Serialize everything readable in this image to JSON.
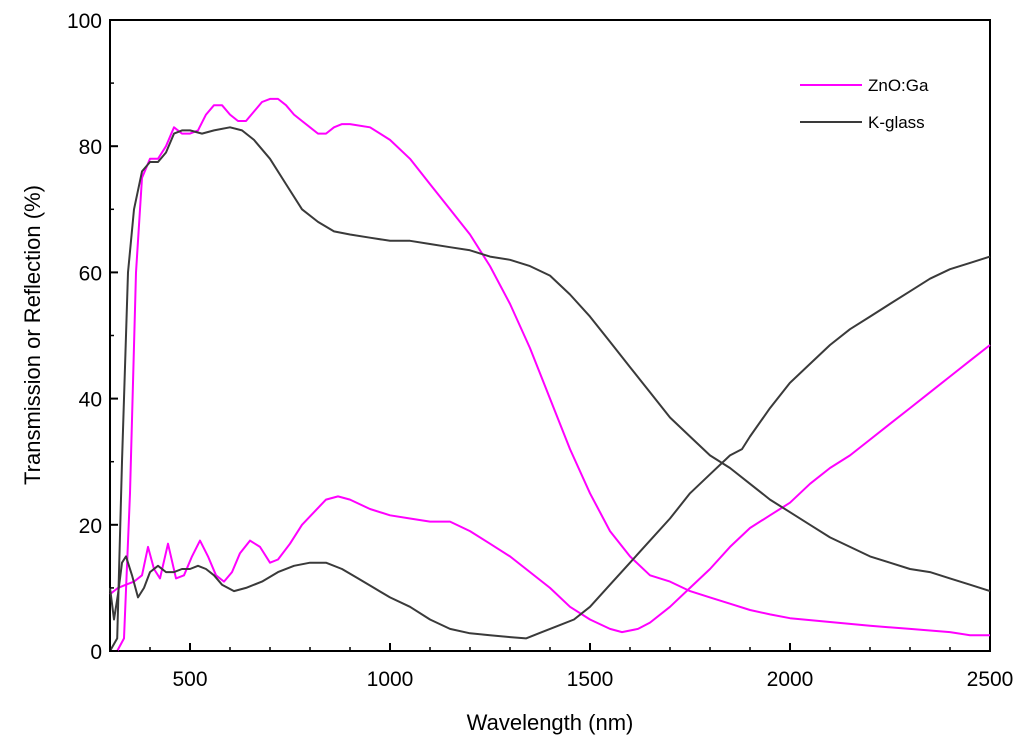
{
  "chart_data": {
    "type": "line",
    "title": "",
    "xlabel": "Wavelength (nm)",
    "ylabel": "Transmission or Reflection (%)",
    "xlim": [
      300,
      2500
    ],
    "ylim": [
      0,
      100
    ],
    "x_ticks": [
      500,
      1000,
      1500,
      2000,
      2500
    ],
    "y_ticks": [
      0,
      20,
      40,
      60,
      80,
      100
    ],
    "x_tick_labels": [
      "500",
      "1000",
      "1500",
      "2000",
      "2500"
    ],
    "y_tick_labels": [
      "0",
      "20",
      "40",
      "60",
      "80",
      "100"
    ],
    "grid": false,
    "legend": {
      "position": "top-right",
      "entries": [
        {
          "label": "ZnO:Ga",
          "color": "#ff00ff"
        },
        {
          "label": "K-glass",
          "color": "#3a3a3a"
        }
      ]
    },
    "series": [
      {
        "name": "ZnO:Ga",
        "kind": "transmission",
        "color": "#ff00ff",
        "points": [
          [
            318,
            0
          ],
          [
            335,
            2
          ],
          [
            350,
            25
          ],
          [
            365,
            60
          ],
          [
            380,
            75
          ],
          [
            400,
            78
          ],
          [
            420,
            78
          ],
          [
            440,
            80
          ],
          [
            460,
            83
          ],
          [
            480,
            82
          ],
          [
            500,
            82
          ],
          [
            520,
            82.5
          ],
          [
            540,
            85
          ],
          [
            560,
            86.5
          ],
          [
            580,
            86.5
          ],
          [
            600,
            85
          ],
          [
            620,
            84
          ],
          [
            640,
            84
          ],
          [
            660,
            85.5
          ],
          [
            680,
            87
          ],
          [
            700,
            87.5
          ],
          [
            720,
            87.5
          ],
          [
            740,
            86.5
          ],
          [
            760,
            85
          ],
          [
            780,
            84
          ],
          [
            800,
            83
          ],
          [
            820,
            82
          ],
          [
            840,
            82
          ],
          [
            860,
            83
          ],
          [
            880,
            83.5
          ],
          [
            900,
            83.5
          ],
          [
            950,
            83
          ],
          [
            1000,
            81
          ],
          [
            1050,
            78
          ],
          [
            1100,
            74
          ],
          [
            1150,
            70
          ],
          [
            1200,
            66
          ],
          [
            1250,
            61
          ],
          [
            1300,
            55
          ],
          [
            1350,
            48
          ],
          [
            1400,
            40
          ],
          [
            1450,
            32
          ],
          [
            1500,
            25
          ],
          [
            1550,
            19
          ],
          [
            1600,
            15
          ],
          [
            1650,
            12
          ],
          [
            1700,
            11
          ],
          [
            1750,
            9.5
          ],
          [
            1800,
            8.5
          ],
          [
            1850,
            7.5
          ],
          [
            1900,
            6.5
          ],
          [
            1950,
            5.8
          ],
          [
            2000,
            5.2
          ],
          [
            2100,
            4.6
          ],
          [
            2200,
            4.0
          ],
          [
            2300,
            3.5
          ],
          [
            2400,
            3.0
          ],
          [
            2450,
            2.5
          ],
          [
            2500,
            2.5
          ]
        ]
      },
      {
        "name": "ZnO:Ga",
        "kind": "reflection",
        "color": "#ff00ff",
        "points": [
          [
            300,
            9
          ],
          [
            320,
            10
          ],
          [
            340,
            10.5
          ],
          [
            360,
            11
          ],
          [
            380,
            12
          ],
          [
            395,
            16.5
          ],
          [
            410,
            13
          ],
          [
            425,
            11.5
          ],
          [
            445,
            17
          ],
          [
            465,
            11.5
          ],
          [
            485,
            12
          ],
          [
            505,
            15
          ],
          [
            525,
            17.5
          ],
          [
            545,
            15
          ],
          [
            565,
            12
          ],
          [
            585,
            11
          ],
          [
            605,
            12.5
          ],
          [
            625,
            15.5
          ],
          [
            650,
            17.5
          ],
          [
            675,
            16.5
          ],
          [
            700,
            14
          ],
          [
            720,
            14.5
          ],
          [
            750,
            17
          ],
          [
            780,
            20
          ],
          [
            810,
            22
          ],
          [
            840,
            24
          ],
          [
            870,
            24.5
          ],
          [
            900,
            24
          ],
          [
            950,
            22.5
          ],
          [
            1000,
            21.5
          ],
          [
            1050,
            21
          ],
          [
            1100,
            20.5
          ],
          [
            1150,
            20.5
          ],
          [
            1200,
            19
          ],
          [
            1250,
            17
          ],
          [
            1300,
            15
          ],
          [
            1350,
            12.5
          ],
          [
            1400,
            10
          ],
          [
            1450,
            7
          ],
          [
            1500,
            5
          ],
          [
            1550,
            3.5
          ],
          [
            1580,
            3
          ],
          [
            1620,
            3.5
          ],
          [
            1650,
            4.5
          ],
          [
            1700,
            7
          ],
          [
            1750,
            10
          ],
          [
            1800,
            13
          ],
          [
            1850,
            16.5
          ],
          [
            1900,
            19.5
          ],
          [
            1950,
            21.5
          ],
          [
            2000,
            23.5
          ],
          [
            2050,
            26.5
          ],
          [
            2100,
            29
          ],
          [
            2150,
            31
          ],
          [
            2200,
            33.5
          ],
          [
            2250,
            36
          ],
          [
            2300,
            38.5
          ],
          [
            2350,
            41
          ],
          [
            2400,
            43.5
          ],
          [
            2450,
            46
          ],
          [
            2500,
            48.5
          ]
        ]
      },
      {
        "name": "K-glass",
        "kind": "transmission",
        "color": "#3a3a3a",
        "points": [
          [
            300,
            0
          ],
          [
            318,
            2
          ],
          [
            330,
            30
          ],
          [
            345,
            60
          ],
          [
            360,
            70
          ],
          [
            380,
            76
          ],
          [
            400,
            77.5
          ],
          [
            420,
            77.5
          ],
          [
            440,
            79
          ],
          [
            460,
            82
          ],
          [
            480,
            82.5
          ],
          [
            500,
            82.5
          ],
          [
            530,
            82
          ],
          [
            560,
            82.5
          ],
          [
            600,
            83
          ],
          [
            630,
            82.5
          ],
          [
            660,
            81
          ],
          [
            700,
            78
          ],
          [
            740,
            74
          ],
          [
            780,
            70
          ],
          [
            820,
            68
          ],
          [
            860,
            66.5
          ],
          [
            900,
            66
          ],
          [
            950,
            65.5
          ],
          [
            1000,
            65
          ],
          [
            1050,
            65
          ],
          [
            1100,
            64.5
          ],
          [
            1150,
            64
          ],
          [
            1200,
            63.5
          ],
          [
            1250,
            62.5
          ],
          [
            1300,
            62
          ],
          [
            1350,
            61
          ],
          [
            1400,
            59.5
          ],
          [
            1450,
            56.5
          ],
          [
            1500,
            53
          ],
          [
            1550,
            49
          ],
          [
            1600,
            45
          ],
          [
            1650,
            41
          ],
          [
            1700,
            37
          ],
          [
            1750,
            34
          ],
          [
            1800,
            31
          ],
          [
            1850,
            29
          ],
          [
            1900,
            26.5
          ],
          [
            1950,
            24
          ],
          [
            2000,
            22
          ],
          [
            2050,
            20
          ],
          [
            2100,
            18
          ],
          [
            2150,
            16.5
          ],
          [
            2200,
            15
          ],
          [
            2250,
            14
          ],
          [
            2300,
            13
          ],
          [
            2350,
            12.5
          ],
          [
            2400,
            11.5
          ],
          [
            2450,
            10.5
          ],
          [
            2500,
            9.5
          ]
        ]
      },
      {
        "name": "K-glass",
        "kind": "reflection",
        "color": "#3a3a3a",
        "points": [
          [
            300,
            10
          ],
          [
            310,
            5
          ],
          [
            320,
            9
          ],
          [
            330,
            14
          ],
          [
            340,
            15
          ],
          [
            355,
            12
          ],
          [
            370,
            8.5
          ],
          [
            385,
            10
          ],
          [
            400,
            12.5
          ],
          [
            420,
            13.5
          ],
          [
            440,
            12.5
          ],
          [
            460,
            12.5
          ],
          [
            480,
            13
          ],
          [
            500,
            13
          ],
          [
            520,
            13.5
          ],
          [
            540,
            13
          ],
          [
            560,
            12
          ],
          [
            580,
            10.5
          ],
          [
            610,
            9.5
          ],
          [
            640,
            10
          ],
          [
            680,
            11
          ],
          [
            720,
            12.5
          ],
          [
            760,
            13.5
          ],
          [
            800,
            14
          ],
          [
            840,
            14
          ],
          [
            880,
            13
          ],
          [
            920,
            11.5
          ],
          [
            960,
            10
          ],
          [
            1000,
            8.5
          ],
          [
            1050,
            7
          ],
          [
            1100,
            5
          ],
          [
            1150,
            3.5
          ],
          [
            1200,
            2.8
          ],
          [
            1250,
            2.5
          ],
          [
            1300,
            2.2
          ],
          [
            1340,
            2
          ],
          [
            1380,
            3
          ],
          [
            1420,
            4
          ],
          [
            1460,
            5
          ],
          [
            1500,
            7
          ],
          [
            1550,
            10.5
          ],
          [
            1600,
            14
          ],
          [
            1650,
            17.5
          ],
          [
            1700,
            21
          ],
          [
            1750,
            25
          ],
          [
            1800,
            28
          ],
          [
            1850,
            31
          ],
          [
            1880,
            32
          ],
          [
            1900,
            34
          ],
          [
            1950,
            38.5
          ],
          [
            2000,
            42.5
          ],
          [
            2050,
            45.5
          ],
          [
            2100,
            48.5
          ],
          [
            2150,
            51
          ],
          [
            2200,
            53
          ],
          [
            2250,
            55
          ],
          [
            2300,
            57
          ],
          [
            2350,
            59
          ],
          [
            2400,
            60.5
          ],
          [
            2450,
            61.5
          ],
          [
            2500,
            62.5
          ]
        ]
      }
    ]
  }
}
